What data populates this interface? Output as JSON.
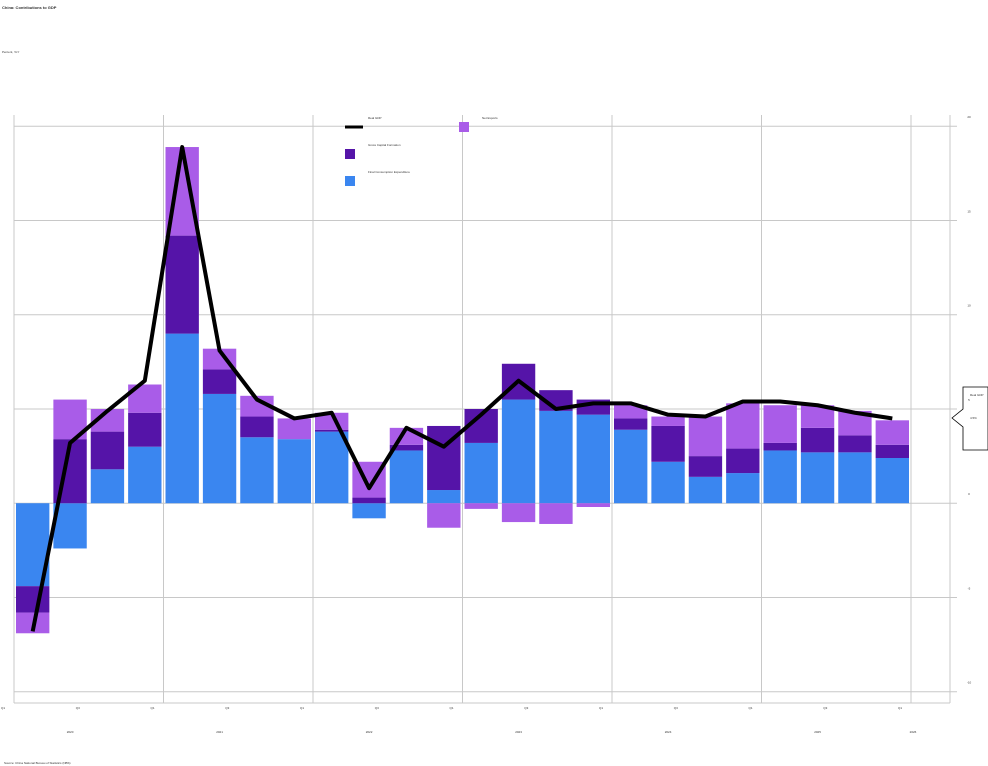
{
  "chart_data": {
    "type": "bar",
    "title": "China: Contributions to GDP",
    "subtitle": "Percent, YoY",
    "source": "Source: China National Bureau of Statistics (NBS)",
    "categories": [
      "Q1 2020",
      "Q2 2020",
      "Q3 2020",
      "Q4 2020",
      "Q1 2021",
      "Q2 2021",
      "Q3 2021",
      "Q4 2021",
      "Q1 2022",
      "Q2 2022",
      "Q3 2022",
      "Q4 2022",
      "Q1 2023",
      "Q2 2023",
      "Q3 2023",
      "Q4 2023",
      "Q1 2024",
      "Q2 2024",
      "Q3 2024",
      "Q4 2024",
      "Q1 2025",
      "Q2 2025",
      "Q3 2025",
      "Q4 2025"
    ],
    "xtick_labels": [
      "Q1",
      "Q3",
      "Q1",
      "Q3",
      "Q1",
      "Q3",
      "Q1",
      "Q3",
      "Q1",
      "Q3",
      "Q1",
      "Q3",
      "Q1"
    ],
    "year_labels": [
      "2020",
      "2021",
      "2022",
      "2023",
      "2024",
      "2025",
      "2026"
    ],
    "series": [
      {
        "name": "Final Consumption Expenditure",
        "color": "#3a86f0",
        "values": [
          -4.4,
          -2.4,
          1.8,
          3.0,
          9.0,
          5.8,
          3.5,
          3.4,
          3.8,
          -0.8,
          2.8,
          0.7,
          3.2,
          5.5,
          4.9,
          4.7,
          3.9,
          2.2,
          1.4,
          1.6,
          2.8,
          2.7,
          2.7,
          2.4
        ]
      },
      {
        "name": "Gross Capital Formation",
        "color": "#5514a8",
        "values": [
          -1.4,
          3.4,
          2.0,
          1.8,
          5.2,
          1.3,
          1.1,
          0.0,
          0.1,
          0.3,
          0.3,
          3.4,
          1.8,
          1.9,
          1.1,
          0.8,
          0.6,
          1.9,
          1.1,
          1.3,
          0.4,
          1.3,
          0.9,
          0.7
        ]
      },
      {
        "name": "Net Exports",
        "color": "#a95ce8",
        "values": [
          -1.1,
          2.1,
          1.2,
          1.5,
          4.7,
          1.1,
          1.1,
          1.1,
          0.9,
          1.9,
          0.9,
          -1.3,
          -0.3,
          -1.0,
          -1.1,
          -0.2,
          0.7,
          0.5,
          2.1,
          2.4,
          2.0,
          1.2,
          1.3,
          1.3
        ]
      },
      {
        "name": "Real GDP",
        "type": "line",
        "color": "#000000",
        "values": [
          -6.8,
          3.2,
          4.9,
          6.5,
          18.9,
          8.1,
          5.5,
          4.5,
          4.8,
          0.8,
          4.0,
          3.0,
          4.7,
          6.5,
          5.0,
          5.3,
          5.3,
          4.7,
          4.6,
          5.4,
          5.4,
          5.2,
          4.8,
          4.5
        ]
      }
    ],
    "ylim": [
      -10.6,
      20.6
    ],
    "yticks": [
      -10,
      -5,
      0,
      5,
      10,
      15,
      20
    ],
    "grid": true,
    "annotation": {
      "label": "Real GDP",
      "value": 4.5,
      "value_label": "4.5%"
    }
  }
}
